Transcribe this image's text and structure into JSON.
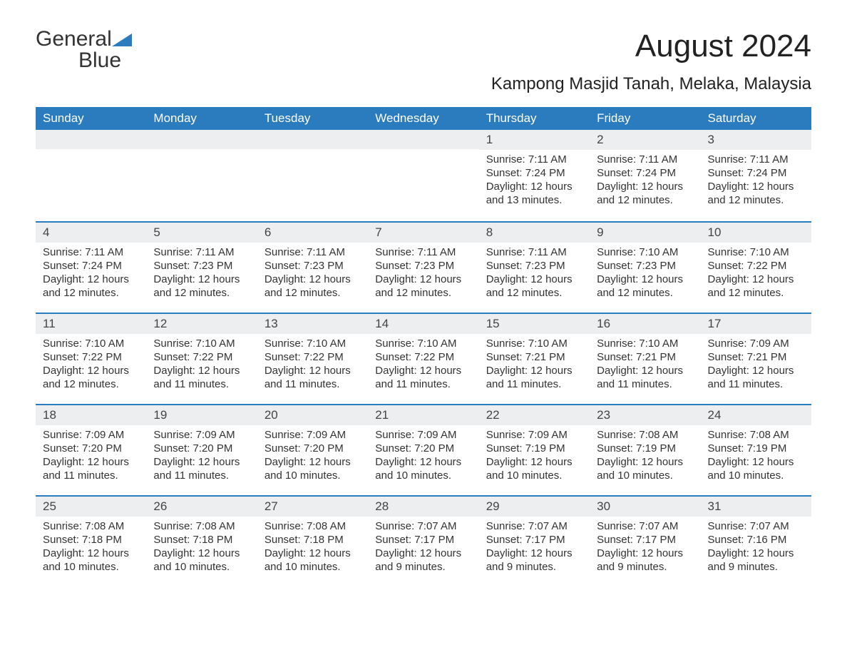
{
  "logo": {
    "text1": "General",
    "text2": "Blue"
  },
  "title": "August 2024",
  "subtitle": "Kampong Masjid Tanah, Melaka, Malaysia",
  "colors": {
    "header_bg": "#2b7bbf",
    "header_text": "#ffffff",
    "daynum_bg": "#eceeef",
    "week_border": "#2b7bbf",
    "text": "#333333",
    "logo_blue": "#2b7bbf"
  },
  "dayNames": [
    "Sunday",
    "Monday",
    "Tuesday",
    "Wednesday",
    "Thursday",
    "Friday",
    "Saturday"
  ],
  "weeks": [
    [
      null,
      null,
      null,
      null,
      {
        "n": "1",
        "sunrise": "Sunrise: 7:11 AM",
        "sunset": "Sunset: 7:24 PM",
        "daylight": "Daylight: 12 hours and 13 minutes."
      },
      {
        "n": "2",
        "sunrise": "Sunrise: 7:11 AM",
        "sunset": "Sunset: 7:24 PM",
        "daylight": "Daylight: 12 hours and 12 minutes."
      },
      {
        "n": "3",
        "sunrise": "Sunrise: 7:11 AM",
        "sunset": "Sunset: 7:24 PM",
        "daylight": "Daylight: 12 hours and 12 minutes."
      }
    ],
    [
      {
        "n": "4",
        "sunrise": "Sunrise: 7:11 AM",
        "sunset": "Sunset: 7:24 PM",
        "daylight": "Daylight: 12 hours and 12 minutes."
      },
      {
        "n": "5",
        "sunrise": "Sunrise: 7:11 AM",
        "sunset": "Sunset: 7:23 PM",
        "daylight": "Daylight: 12 hours and 12 minutes."
      },
      {
        "n": "6",
        "sunrise": "Sunrise: 7:11 AM",
        "sunset": "Sunset: 7:23 PM",
        "daylight": "Daylight: 12 hours and 12 minutes."
      },
      {
        "n": "7",
        "sunrise": "Sunrise: 7:11 AM",
        "sunset": "Sunset: 7:23 PM",
        "daylight": "Daylight: 12 hours and 12 minutes."
      },
      {
        "n": "8",
        "sunrise": "Sunrise: 7:11 AM",
        "sunset": "Sunset: 7:23 PM",
        "daylight": "Daylight: 12 hours and 12 minutes."
      },
      {
        "n": "9",
        "sunrise": "Sunrise: 7:10 AM",
        "sunset": "Sunset: 7:23 PM",
        "daylight": "Daylight: 12 hours and 12 minutes."
      },
      {
        "n": "10",
        "sunrise": "Sunrise: 7:10 AM",
        "sunset": "Sunset: 7:22 PM",
        "daylight": "Daylight: 12 hours and 12 minutes."
      }
    ],
    [
      {
        "n": "11",
        "sunrise": "Sunrise: 7:10 AM",
        "sunset": "Sunset: 7:22 PM",
        "daylight": "Daylight: 12 hours and 12 minutes."
      },
      {
        "n": "12",
        "sunrise": "Sunrise: 7:10 AM",
        "sunset": "Sunset: 7:22 PM",
        "daylight": "Daylight: 12 hours and 11 minutes."
      },
      {
        "n": "13",
        "sunrise": "Sunrise: 7:10 AM",
        "sunset": "Sunset: 7:22 PM",
        "daylight": "Daylight: 12 hours and 11 minutes."
      },
      {
        "n": "14",
        "sunrise": "Sunrise: 7:10 AM",
        "sunset": "Sunset: 7:22 PM",
        "daylight": "Daylight: 12 hours and 11 minutes."
      },
      {
        "n": "15",
        "sunrise": "Sunrise: 7:10 AM",
        "sunset": "Sunset: 7:21 PM",
        "daylight": "Daylight: 12 hours and 11 minutes."
      },
      {
        "n": "16",
        "sunrise": "Sunrise: 7:10 AM",
        "sunset": "Sunset: 7:21 PM",
        "daylight": "Daylight: 12 hours and 11 minutes."
      },
      {
        "n": "17",
        "sunrise": "Sunrise: 7:09 AM",
        "sunset": "Sunset: 7:21 PM",
        "daylight": "Daylight: 12 hours and 11 minutes."
      }
    ],
    [
      {
        "n": "18",
        "sunrise": "Sunrise: 7:09 AM",
        "sunset": "Sunset: 7:20 PM",
        "daylight": "Daylight: 12 hours and 11 minutes."
      },
      {
        "n": "19",
        "sunrise": "Sunrise: 7:09 AM",
        "sunset": "Sunset: 7:20 PM",
        "daylight": "Daylight: 12 hours and 11 minutes."
      },
      {
        "n": "20",
        "sunrise": "Sunrise: 7:09 AM",
        "sunset": "Sunset: 7:20 PM",
        "daylight": "Daylight: 12 hours and 10 minutes."
      },
      {
        "n": "21",
        "sunrise": "Sunrise: 7:09 AM",
        "sunset": "Sunset: 7:20 PM",
        "daylight": "Daylight: 12 hours and 10 minutes."
      },
      {
        "n": "22",
        "sunrise": "Sunrise: 7:09 AM",
        "sunset": "Sunset: 7:19 PM",
        "daylight": "Daylight: 12 hours and 10 minutes."
      },
      {
        "n": "23",
        "sunrise": "Sunrise: 7:08 AM",
        "sunset": "Sunset: 7:19 PM",
        "daylight": "Daylight: 12 hours and 10 minutes."
      },
      {
        "n": "24",
        "sunrise": "Sunrise: 7:08 AM",
        "sunset": "Sunset: 7:19 PM",
        "daylight": "Daylight: 12 hours and 10 minutes."
      }
    ],
    [
      {
        "n": "25",
        "sunrise": "Sunrise: 7:08 AM",
        "sunset": "Sunset: 7:18 PM",
        "daylight": "Daylight: 12 hours and 10 minutes."
      },
      {
        "n": "26",
        "sunrise": "Sunrise: 7:08 AM",
        "sunset": "Sunset: 7:18 PM",
        "daylight": "Daylight: 12 hours and 10 minutes."
      },
      {
        "n": "27",
        "sunrise": "Sunrise: 7:08 AM",
        "sunset": "Sunset: 7:18 PM",
        "daylight": "Daylight: 12 hours and 10 minutes."
      },
      {
        "n": "28",
        "sunrise": "Sunrise: 7:07 AM",
        "sunset": "Sunset: 7:17 PM",
        "daylight": "Daylight: 12 hours and 9 minutes."
      },
      {
        "n": "29",
        "sunrise": "Sunrise: 7:07 AM",
        "sunset": "Sunset: 7:17 PM",
        "daylight": "Daylight: 12 hours and 9 minutes."
      },
      {
        "n": "30",
        "sunrise": "Sunrise: 7:07 AM",
        "sunset": "Sunset: 7:17 PM",
        "daylight": "Daylight: 12 hours and 9 minutes."
      },
      {
        "n": "31",
        "sunrise": "Sunrise: 7:07 AM",
        "sunset": "Sunset: 7:16 PM",
        "daylight": "Daylight: 12 hours and 9 minutes."
      }
    ]
  ]
}
